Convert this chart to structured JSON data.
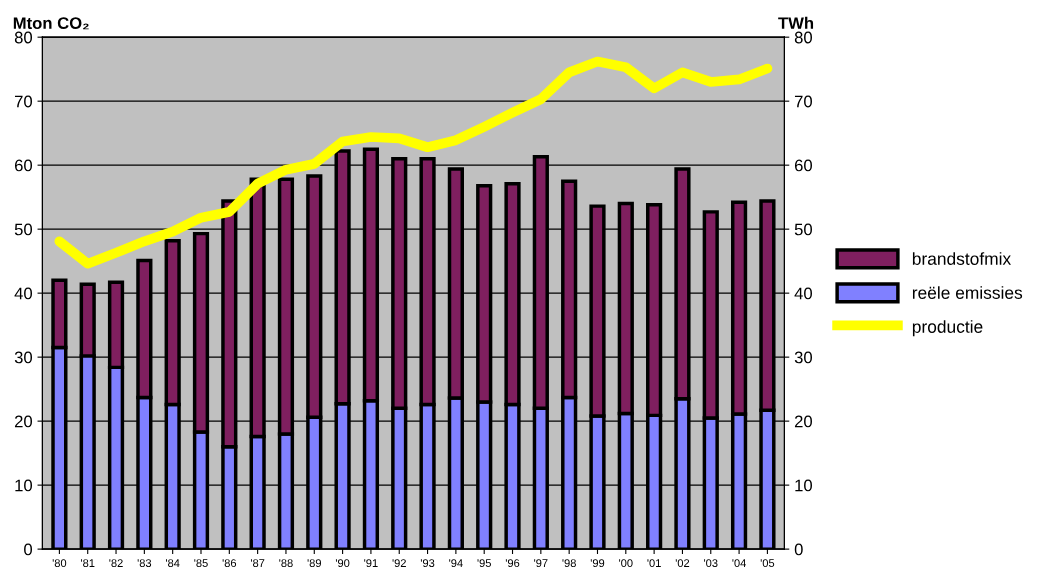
{
  "chart_data": {
    "type": "bar",
    "stacked": true,
    "ylabel": "Mton CO₂",
    "y2label": "TWh",
    "categories": [
      "'80",
      "'81",
      "'82",
      "'83",
      "'84",
      "'85",
      "'86",
      "'87",
      "'88",
      "'89",
      "'90",
      "'91",
      "'92",
      "'93",
      "'94",
      "'95",
      "'96",
      "'97",
      "'98",
      "'99",
      "'00",
      "'01",
      "'02",
      "'03",
      "'04",
      "'05"
    ],
    "series": [
      {
        "name": "reële emissies",
        "color": "#8080ff",
        "values": [
          31.5,
          30.2,
          28.4,
          23.7,
          22.6,
          18.3,
          16.0,
          17.6,
          18.0,
          20.6,
          22.7,
          23.2,
          22.0,
          22.6,
          23.6,
          23.0,
          22.6,
          22.0,
          23.7,
          20.8,
          21.2,
          20.9,
          23.5,
          20.5,
          21.1,
          21.7
        ]
      },
      {
        "name": "brandstofmix",
        "color": "#7f1f5f",
        "values": [
          10.5,
          11.2,
          13.3,
          21.4,
          25.6,
          31.0,
          38.4,
          40.2,
          39.8,
          37.7,
          39.5,
          39.3,
          39.0,
          38.4,
          35.8,
          33.8,
          34.5,
          39.3,
          33.8,
          32.8,
          32.8,
          32.9,
          35.9,
          32.2,
          33.1,
          32.7
        ]
      },
      {
        "name": "productie",
        "type": "line",
        "axis": "y2",
        "color": "#ffff00",
        "values": [
          48.1,
          44.6,
          46.3,
          48.1,
          49.6,
          51.8,
          52.7,
          57.1,
          59.3,
          60.2,
          63.7,
          64.4,
          64.2,
          62.8,
          63.9,
          66.0,
          68.2,
          70.3,
          74.5,
          76.2,
          75.3,
          72.0,
          74.5,
          73.0,
          73.4,
          75.1
        ]
      }
    ],
    "ylim": [
      0,
      80
    ],
    "yticks": [
      0,
      10,
      20,
      30,
      40,
      50,
      60,
      70,
      80
    ],
    "y2lim": [
      0,
      80
    ],
    "y2ticks": [
      0,
      10,
      20,
      30,
      40,
      50,
      60,
      70,
      80
    ],
    "grid": "y",
    "legend": "right"
  }
}
